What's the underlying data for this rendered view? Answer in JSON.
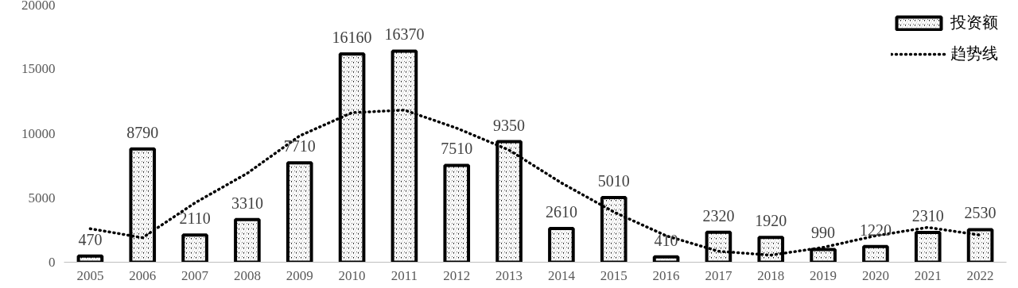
{
  "chart_data": {
    "type": "bar",
    "categories": [
      "2005",
      "2006",
      "2007",
      "2008",
      "2009",
      "2010",
      "2011",
      "2012",
      "2013",
      "2014",
      "2015",
      "2016",
      "2017",
      "2018",
      "2019",
      "2020",
      "2021",
      "2022"
    ],
    "series": [
      {
        "name": "投资额",
        "color": "#000000",
        "values": [
          470,
          8790,
          2110,
          3310,
          7710,
          16160,
          16370,
          7510,
          9350,
          2610,
          5010,
          410,
          2320,
          1920,
          990,
          1220,
          2310,
          2530
        ],
        "value_labels": [
          "470",
          "8790",
          "2110",
          "3310",
          "7710",
          "16160",
          "16370",
          "7510",
          "9350",
          "2610",
          "5010",
          "410",
          "2320",
          "1920",
          "990",
          "1220",
          "2310",
          "2530"
        ]
      },
      {
        "name": "趋势线",
        "type": "line",
        "color": "#000000",
        "line_style": "dotted",
        "values": [
          2600,
          1900,
          4600,
          6900,
          9800,
          11600,
          11800,
          10400,
          8700,
          6150,
          3900,
          2050,
          850,
          550,
          1150,
          2050,
          2700,
          2100
        ]
      }
    ],
    "ylim": [
      0,
      20000
    ],
    "yticks": [
      0,
      5000,
      10000,
      15000,
      20000
    ],
    "grid": false,
    "legend": "top right"
  }
}
